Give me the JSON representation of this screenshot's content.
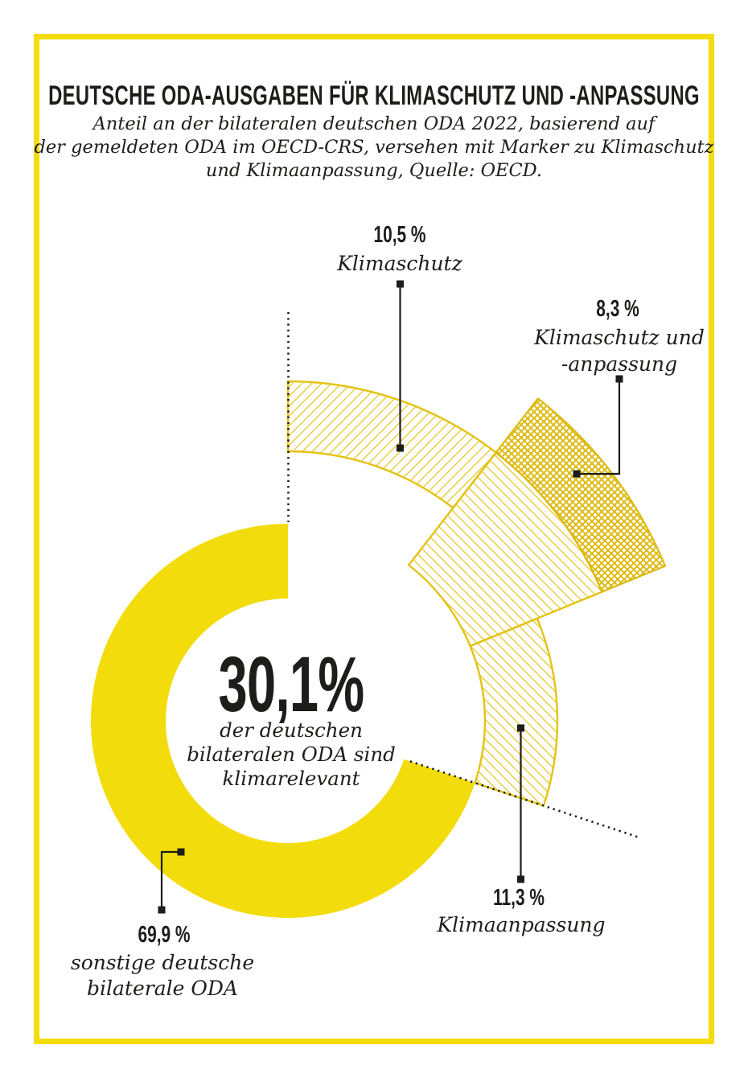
{
  "page": {
    "title": "DEUTSCHE ODA-AUSGABEN FÜR KLIMASCHUTZ UND -ANPASSUNG",
    "subtitle_lines": [
      "Anteil an der bilateralen deutschen ODA 2022, basierend auf",
      "der gemeldeten ODA im OECD-CRS, versehen mit Marker zu Klimaschutz",
      "und Klimaanpassung, Quelle: OECD."
    ]
  },
  "chart_data": {
    "type": "pie",
    "subtype": "donut-exploded",
    "title": "Deutsche ODA-Ausgaben für Klimaschutz und -Anpassung",
    "unit": "%",
    "center": {
      "value": "30,1%",
      "label_lines": [
        "der deutschen",
        "bilateralen ODA sind",
        "klimarelevant"
      ]
    },
    "segments": [
      {
        "name": "klimaschutz",
        "value": 10.5,
        "value_display": "10,5 %",
        "label_lines": [
          "Klimaschutz"
        ],
        "pattern": "hatch-up"
      },
      {
        "name": "klimaschutz-und-anpassung",
        "value": 8.3,
        "value_display": "8,3 %",
        "label_lines": [
          "Klimaschutz und",
          "-anpassung"
        ],
        "pattern": "cross-hatch"
      },
      {
        "name": "klimaanpassung",
        "value": 11.3,
        "value_display": "11,3 %",
        "label_lines": [
          "Klimaanpassung"
        ],
        "pattern": "hatch-down"
      },
      {
        "name": "sonstige-bilaterale-oda",
        "value": 69.9,
        "value_display": "69,9 %",
        "label_lines": [
          "sonstige deutsche",
          "bilaterale ODA"
        ],
        "pattern": "solid"
      }
    ],
    "colors": {
      "solid_yellow": "#F2DC0B",
      "hatch_yellow": "#E4C213",
      "cross_yellow": "#DDBA10",
      "ink": "#1d1d1b"
    }
  }
}
